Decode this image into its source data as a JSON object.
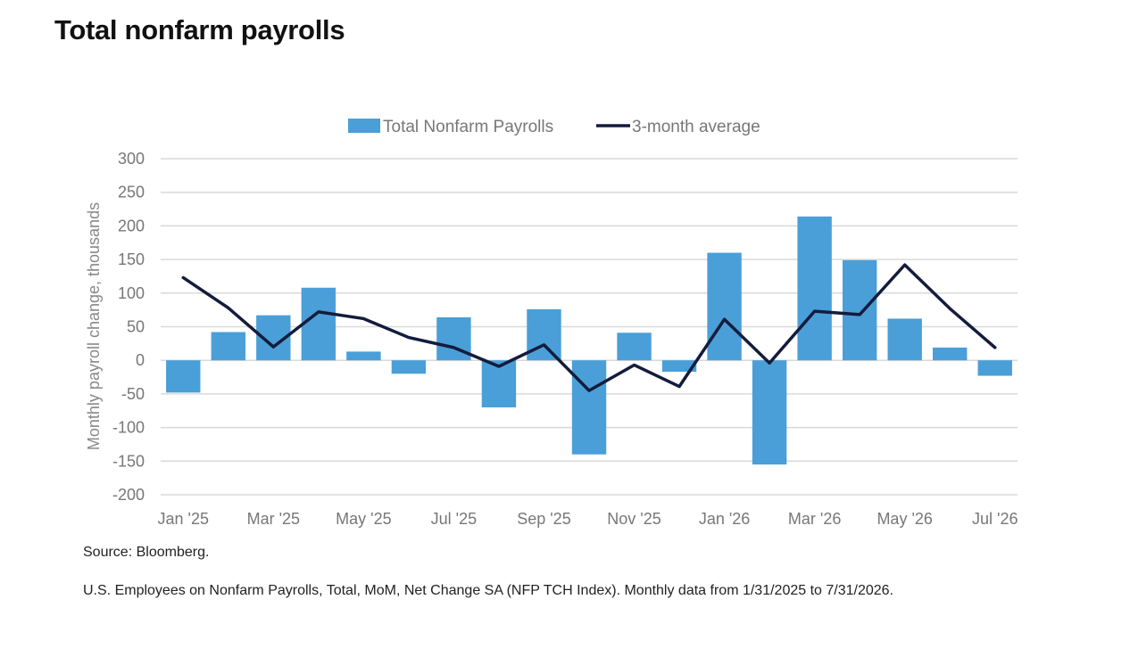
{
  "page": {
    "title": "Total nonfarm payrolls",
    "source": "Source: Bloomberg.",
    "note": "U.S. Employees on Nonfarm Payrolls, Total, MoM, Net Change SA (NFP TCH Index). Monthly data from 1/31/2025 to 7/31/2026."
  },
  "colors": {
    "bar": "#4a9fd8",
    "line": "#141c3d",
    "grid": "#d9d9d9",
    "text": "#777777"
  },
  "chart_data": {
    "type": "bar",
    "title": "",
    "xlabel": "",
    "ylabel": "Monthly payroll change, thousands",
    "ylim": [
      -200,
      300
    ],
    "yticks": [
      300,
      250,
      200,
      150,
      100,
      50,
      0,
      -50,
      -100,
      -150,
      -200
    ],
    "grid": true,
    "legend_position": "top",
    "categories": [
      "Jan '25",
      "Feb '25",
      "Mar '25",
      "Apr '25",
      "May '25",
      "Jun '25",
      "Jul '25",
      "Aug '25",
      "Sep '25",
      "Oct '25",
      "Nov '25",
      "Dec '25",
      "Jan '26",
      "Feb '26",
      "Mar '26",
      "Apr '26",
      "May '26",
      "Jun '26",
      "Jul '26"
    ],
    "xtick_labels": [
      "Jan '25",
      "Mar '25",
      "May '25",
      "Jul '25",
      "Sep '25",
      "Nov '25",
      "Jan '26",
      "Mar '26",
      "May '26",
      "Jul '26"
    ],
    "series": [
      {
        "name": "Total Nonfarm Payrolls",
        "type": "bar",
        "values": [
          -48,
          42,
          67,
          108,
          13,
          -20,
          64,
          -70,
          76,
          -140,
          41,
          -17,
          160,
          -155,
          214,
          149,
          62,
          19,
          -23
        ]
      },
      {
        "name": "3-month average",
        "type": "line",
        "values": [
          123,
          78,
          20,
          72,
          62,
          34,
          19,
          -9,
          23,
          -45,
          -7,
          -39,
          61,
          -4,
          73,
          68,
          142,
          77,
          19
        ]
      }
    ]
  }
}
